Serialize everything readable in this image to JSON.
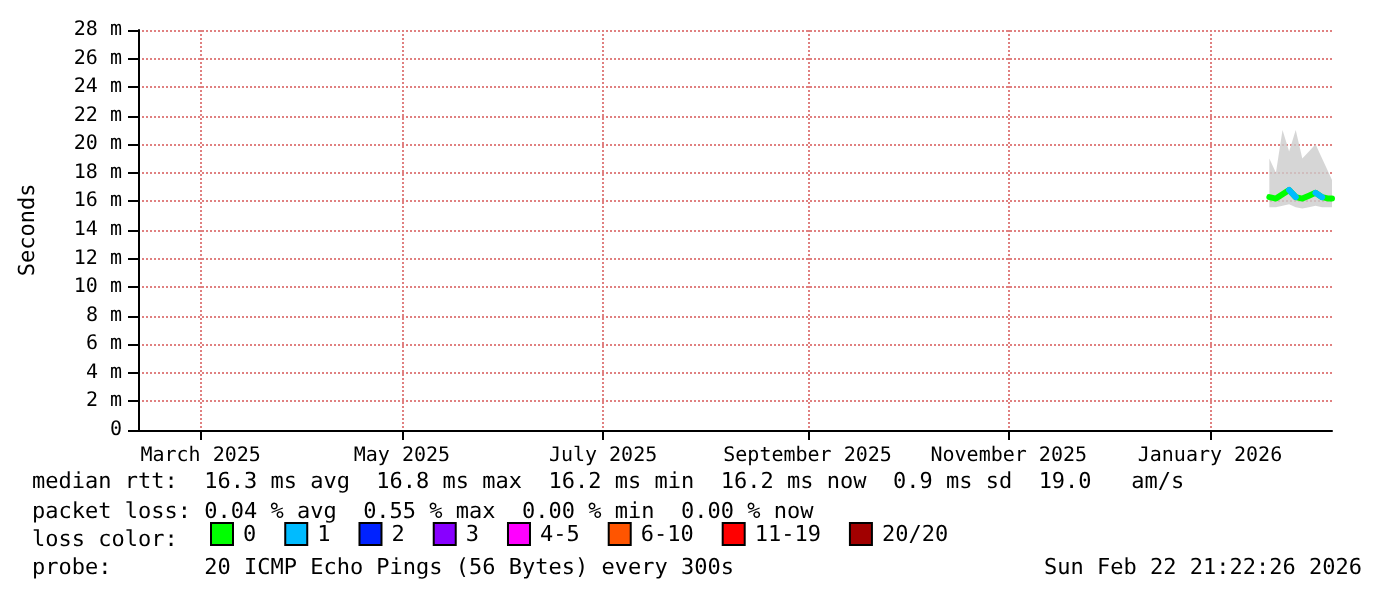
{
  "chart_data": {
    "type": "line",
    "ylabel": "Seconds",
    "legend_title": "loss color:",
    "legend": "bottom",
    "grid": true,
    "marker": "none",
    "line_style": "solid",
    "xlim": [
      "2025-02-25",
      "2026-02-22"
    ],
    "xticks": [
      {
        "value": "2025-03-16",
        "label": "March 2025"
      },
      {
        "value": "2025-05-16",
        "label": "May 2025"
      },
      {
        "value": "2025-07-16",
        "label": "July 2025"
      },
      {
        "value": "2025-09-16",
        "label": "September 2025"
      },
      {
        "value": "2025-11-16",
        "label": "November 2025"
      },
      {
        "value": "2026-01-16",
        "label": "January 2026"
      }
    ],
    "ylim": [
      0,
      28
    ],
    "yticks": [
      0,
      {
        "value": 2,
        "label": "2 m"
      },
      {
        "value": 4,
        "label": "4 m"
      },
      {
        "value": 6,
        "label": "6 m"
      },
      {
        "value": 8,
        "label": "8 m"
      },
      {
        "value": 10,
        "label": "10 m"
      },
      {
        "value": 12,
        "label": "12 m"
      },
      {
        "value": 14,
        "label": "14 m"
      },
      {
        "value": 16,
        "label": "16 m"
      },
      {
        "value": 18,
        "label": "18 m"
      },
      {
        "value": 20,
        "label": "20 m"
      },
      {
        "value": 22,
        "label": "22 m"
      },
      {
        "value": 24,
        "label": "24 m"
      },
      {
        "value": 26,
        "label": "26 m"
      },
      {
        "value": 28,
        "label": "28 m"
      }
    ],
    "x": [
      "2026-02-03",
      "2026-02-05",
      "2026-02-07",
      "2026-02-09",
      "2026-02-11",
      "2026-02-13",
      "2026-02-15",
      "2026-02-17",
      "2026-02-19",
      "2026-02-21",
      "2026-02-22"
    ],
    "series": [
      {
        "name": "0",
        "color": "#00ff00",
        "values": [
          16.3,
          16.2,
          16.5,
          16.8,
          16.3,
          16.2,
          16.4,
          16.6,
          16.3,
          16.2,
          16.2
        ],
        "lower": [
          15.6,
          15.6,
          15.7,
          15.8,
          15.6,
          15.5,
          15.6,
          15.7,
          15.6,
          15.6,
          15.6
        ],
        "upper": [
          19,
          18,
          21,
          19.5,
          21,
          19,
          19.5,
          20,
          19,
          18,
          17.5
        ]
      },
      {
        "name": "1",
        "color": "#00bbff",
        "values": [
          null,
          null,
          null,
          16.8,
          16.3,
          null,
          null,
          16.6,
          16.3,
          null,
          null
        ]
      },
      {
        "name": "2",
        "color": "#0022ff",
        "values": [
          null,
          null,
          null,
          null,
          null,
          null,
          null,
          null,
          null,
          null,
          null
        ]
      },
      {
        "name": "3",
        "color": "#8800ff",
        "values": [
          null,
          null,
          null,
          null,
          null,
          null,
          null,
          null,
          null,
          null,
          null
        ]
      },
      {
        "name": "4-5",
        "color": "#ff00ff",
        "values": [
          null,
          null,
          null,
          null,
          null,
          null,
          null,
          null,
          null,
          null,
          null
        ]
      },
      {
        "name": "6-10",
        "color": "#ff5500",
        "values": [
          null,
          null,
          null,
          null,
          null,
          null,
          null,
          null,
          null,
          null,
          null
        ]
      },
      {
        "name": "11-19",
        "color": "#ff0000",
        "values": [
          null,
          null,
          null,
          null,
          null,
          null,
          null,
          null,
          null,
          null,
          null
        ]
      },
      {
        "name": "20/20",
        "color": "#a10000",
        "values": [
          null,
          null,
          null,
          null,
          null,
          null,
          null,
          null,
          null,
          null,
          null
        ]
      }
    ],
    "annotations": [
      "median rtt:  16.3 ms avg  16.8 ms max  16.2 ms min  16.2 ms now  0.9 ms sd  19.0   am/s",
      "packet loss: 0.04 % avg  0.55 % max  0.00 % min  0.00 % now",
      "probe:       20 ICMP Echo Pings (56 Bytes) every 300s",
      "Sun Feb 22 21:22:26 2026"
    ]
  }
}
